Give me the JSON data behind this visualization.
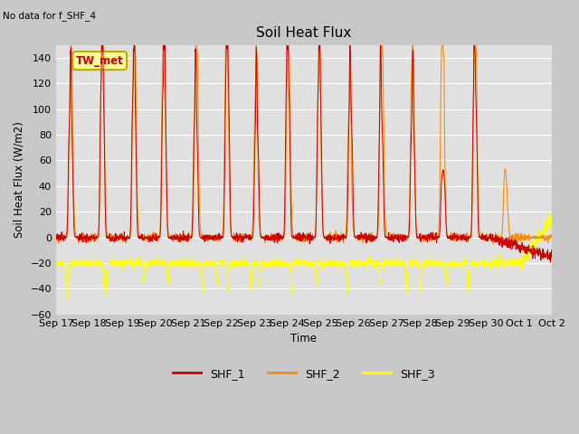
{
  "title": "Soil Heat Flux",
  "subtitle": "No data for f_SHF_4",
  "ylabel": "Soil Heat Flux (W/m2)",
  "xlabel": "Time",
  "ylim": [
    -60,
    150
  ],
  "yticks": [
    -60,
    -40,
    -20,
    0,
    20,
    40,
    60,
    80,
    100,
    120,
    140
  ],
  "xtick_labels": [
    "Sep 17",
    "Sep 18",
    "Sep 19",
    "Sep 20",
    "Sep 21",
    "Sep 22",
    "Sep 23",
    "Sep 24",
    "Sep 25",
    "Sep 26",
    "Sep 27",
    "Sep 28",
    "Sep 29",
    "Sep 30",
    "Oct 1",
    "Oct 2"
  ],
  "legend_labels": [
    "SHF_1",
    "SHF_2",
    "SHF_3"
  ],
  "shf1_color": "#cc0000",
  "shf2_color": "#ff8c00",
  "shf3_color": "#ffff00",
  "fig_bg_color": "#c8c8c8",
  "plot_bg_color": "#e0e0e0",
  "annotation_box_color": "#ffffa0",
  "annotation_text": "TW_met",
  "n_days": 16,
  "pts_per_day": 144
}
